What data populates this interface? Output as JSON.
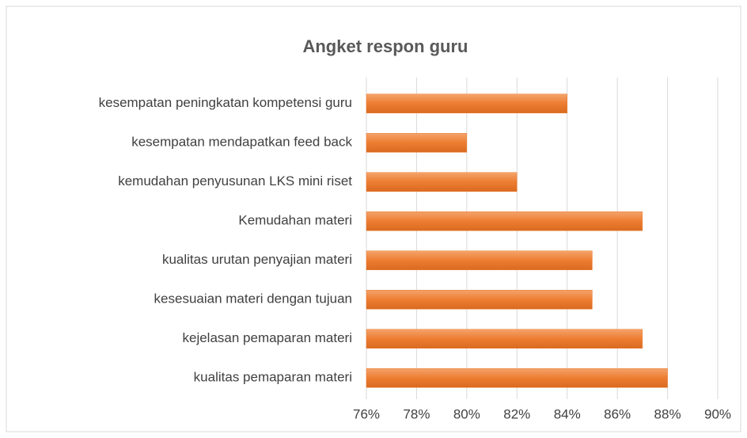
{
  "chart_data": {
    "type": "barh",
    "title": "Angket respon guru",
    "categories": [
      "kesempatan peningkatan kompetensi guru",
      "kesempatan mendapatkan feed back",
      "kemudahan penyusunan LKS mini riset",
      "Kemudahan materi",
      "kualitas urutan penyajian materi",
      "kesesuaian materi dengan tujuan",
      "kejelasan pemaparan materi",
      "kualitas pemaparan materi"
    ],
    "values": [
      84,
      80,
      82,
      87,
      85,
      85,
      87,
      88
    ],
    "color": "#ed7d31",
    "xlim": [
      76,
      90
    ],
    "xticks": [
      {
        "value": 76,
        "label": "76%"
      },
      {
        "value": 78,
        "label": "78%"
      },
      {
        "value": 80,
        "label": "80%"
      },
      {
        "value": 82,
        "label": "82%"
      },
      {
        "value": 84,
        "label": "84%"
      },
      {
        "value": 86,
        "label": "86%"
      },
      {
        "value": 88,
        "label": "88%"
      },
      {
        "value": 90,
        "label": "90%"
      }
    ],
    "grid": true
  }
}
